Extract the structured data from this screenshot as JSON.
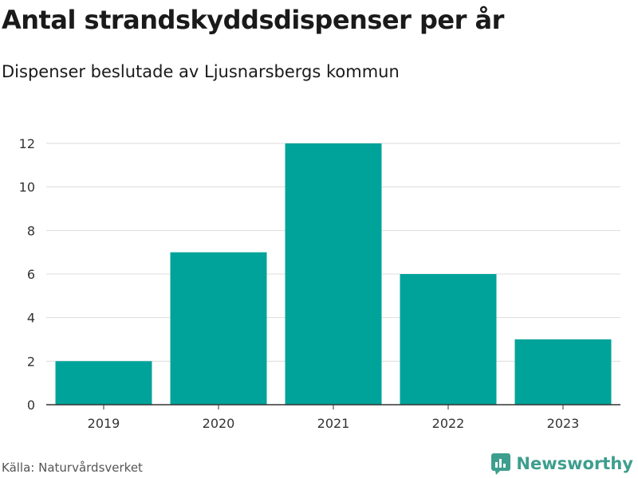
{
  "header": {
    "title": "Antal strandskyddsdispenser per år",
    "subtitle": "Dispenser beslutade av Ljusnarsbergs kommun"
  },
  "footer": {
    "source": "Källa: Naturvårdsverket",
    "brand": "Newsworthy"
  },
  "colors": {
    "bar": "#00a39a",
    "grid": "#dddddd",
    "axis": "#333333",
    "brand": "#3d9e8e"
  },
  "chart_data": {
    "type": "bar",
    "title": "Antal strandskyddsdispenser per år",
    "subtitle": "Dispenser beslutade av Ljusnarsbergs kommun",
    "xlabel": "",
    "ylabel": "",
    "categories": [
      "2019",
      "2020",
      "2021",
      "2022",
      "2023"
    ],
    "values": [
      2,
      7,
      12,
      6,
      3
    ],
    "ylim": [
      0,
      12
    ],
    "yticks": [
      0,
      2,
      4,
      6,
      8,
      10,
      12
    ],
    "grid": true
  }
}
